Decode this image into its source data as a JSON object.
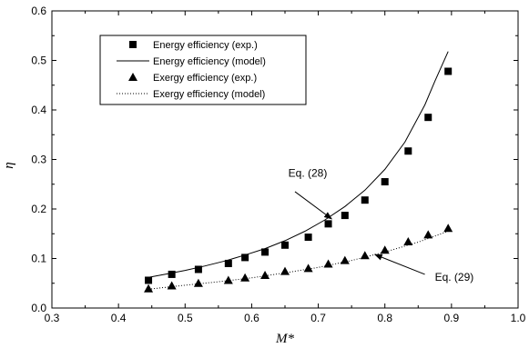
{
  "chart_data": {
    "type": "scatter",
    "xlabel": "M*",
    "ylabel": "η",
    "xlim": [
      0.3,
      1.0
    ],
    "ylim": [
      0.0,
      0.6
    ],
    "x_ticks": [
      "0.3",
      "0.4",
      "0.5",
      "0.6",
      "0.7",
      "0.8",
      "0.9",
      "1.0"
    ],
    "y_ticks": [
      "0.0",
      "0.1",
      "0.2",
      "0.3",
      "0.4",
      "0.5",
      "0.6"
    ],
    "grid": false,
    "legend_position": "top-left",
    "legend": [
      "Energy efficiency (exp.)",
      "Energy efficiency (model)",
      "Exergy efficiency (exp.)",
      "Exergy efficiency (model)"
    ],
    "series": [
      {
        "name": "Energy efficiency (exp.)",
        "kind": "markers",
        "marker": "square",
        "x": [
          0.445,
          0.48,
          0.52,
          0.565,
          0.59,
          0.62,
          0.65,
          0.685,
          0.715,
          0.74,
          0.77,
          0.8,
          0.835,
          0.865,
          0.895
        ],
        "y": [
          0.056,
          0.068,
          0.078,
          0.09,
          0.102,
          0.113,
          0.127,
          0.143,
          0.17,
          0.187,
          0.218,
          0.255,
          0.317,
          0.385,
          0.478
        ]
      },
      {
        "name": "Energy efficiency (model)",
        "kind": "line",
        "dash": "solid",
        "x": [
          0.445,
          0.47,
          0.5,
          0.53,
          0.56,
          0.59,
          0.62,
          0.65,
          0.68,
          0.71,
          0.74,
          0.77,
          0.8,
          0.83,
          0.86,
          0.875,
          0.895
        ],
        "y": [
          0.062,
          0.068,
          0.076,
          0.085,
          0.095,
          0.107,
          0.12,
          0.136,
          0.155,
          0.178,
          0.205,
          0.238,
          0.28,
          0.335,
          0.41,
          0.458,
          0.518
        ]
      },
      {
        "name": "Exergy efficiency (exp.)",
        "kind": "markers",
        "marker": "triangle",
        "x": [
          0.445,
          0.48,
          0.52,
          0.565,
          0.59,
          0.62,
          0.65,
          0.685,
          0.715,
          0.74,
          0.77,
          0.8,
          0.835,
          0.865,
          0.895
        ],
        "y": [
          0.039,
          0.045,
          0.05,
          0.056,
          0.061,
          0.066,
          0.074,
          0.08,
          0.089,
          0.096,
          0.106,
          0.117,
          0.134,
          0.148,
          0.161
        ]
      },
      {
        "name": "Exergy efficiency (model)",
        "kind": "line",
        "dash": "dotted",
        "x": [
          0.445,
          0.5,
          0.55,
          0.6,
          0.65,
          0.7,
          0.75,
          0.8,
          0.85,
          0.895
        ],
        "y": [
          0.038,
          0.046,
          0.053,
          0.061,
          0.071,
          0.082,
          0.096,
          0.113,
          0.133,
          0.155
        ]
      }
    ],
    "annotations": [
      {
        "text": "Eq. (28)",
        "text_x": 0.655,
        "text_y": 0.265,
        "arrow_from": [
          0.665,
          0.235
        ],
        "arrow_to": [
          0.72,
          0.18
        ]
      },
      {
        "text": "Eq. (29)",
        "text_x": 0.875,
        "text_y": 0.055,
        "arrow_from": [
          0.86,
          0.068
        ],
        "arrow_to": [
          0.785,
          0.108
        ]
      }
    ],
    "colors": {
      "marker": "#000000",
      "line": "#000000",
      "axis": "#000000"
    }
  }
}
